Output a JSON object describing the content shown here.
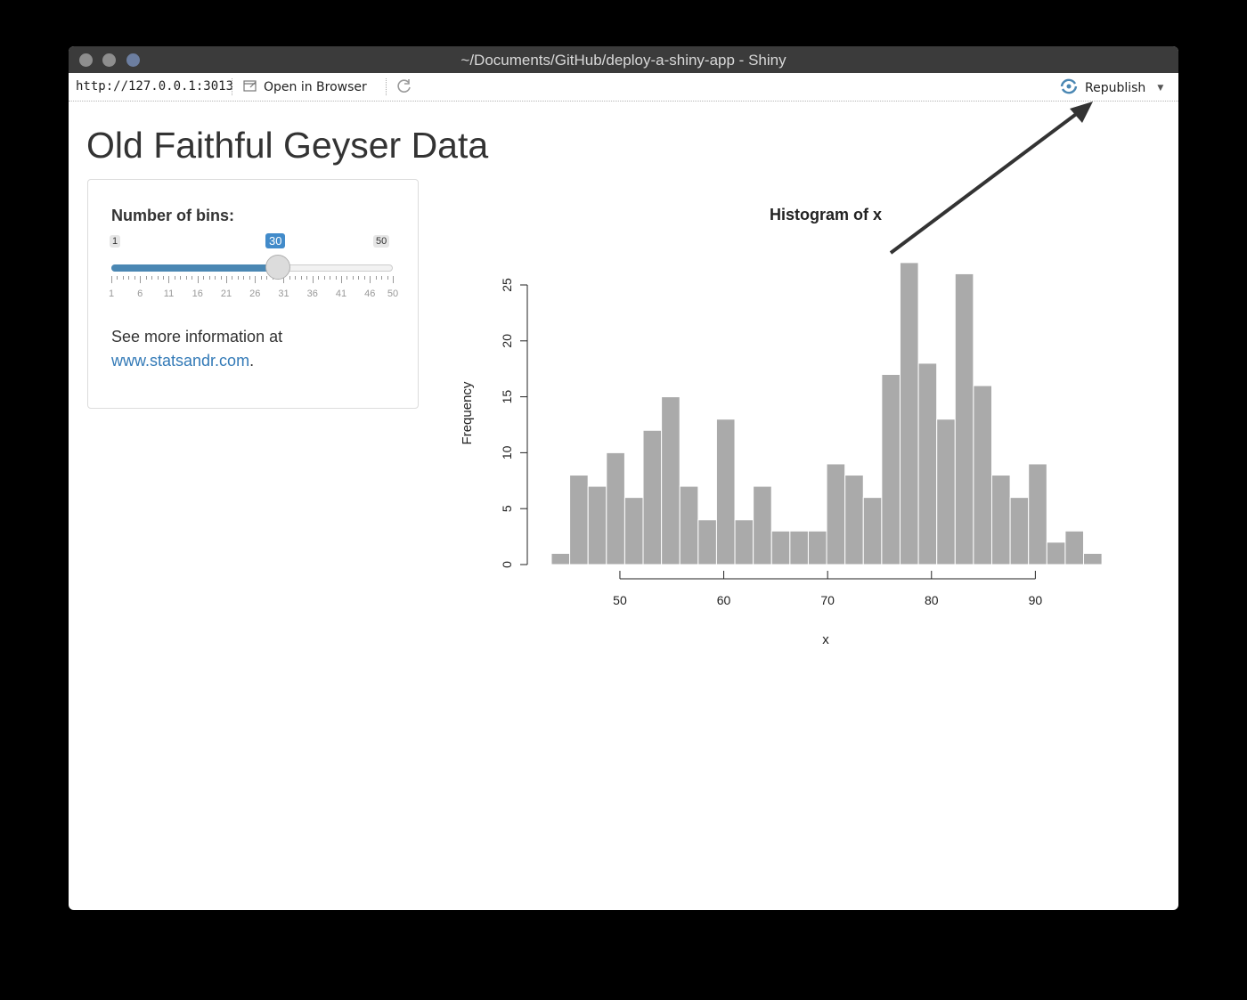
{
  "window": {
    "title": "~/Documents/GitHub/deploy-a-shiny-app - Shiny"
  },
  "toolbar": {
    "url": "http://127.0.0.1:3013",
    "open_in_browser": "Open in Browser",
    "republish": "Republish"
  },
  "app": {
    "title": "Old Faithful Geyser Data",
    "bins_label": "Number of bins:",
    "slider": {
      "min": 1,
      "max": 50,
      "value": 30,
      "min_label": "1",
      "max_label": "50",
      "value_label": "30",
      "tick_labels": [
        "1",
        "6",
        "11",
        "16",
        "21",
        "26",
        "31",
        "36",
        "41",
        "46",
        "50"
      ]
    },
    "more_info_text": "See more information at",
    "more_info_link": "www.statsandr.com",
    "more_info_period": "."
  },
  "colors": {
    "accent": "#428bca",
    "bar_fill": "#aaaaaa",
    "link": "#337ab7"
  },
  "chart_data": {
    "type": "bar",
    "title": "Histogram of x",
    "xlabel": "x",
    "ylabel": "Frequency",
    "bin_start": 43.4,
    "bin_width": 1.767,
    "values": [
      1,
      8,
      7,
      10,
      6,
      12,
      15,
      7,
      4,
      13,
      4,
      7,
      3,
      3,
      3,
      9,
      8,
      6,
      17,
      27,
      18,
      13,
      26,
      16,
      8,
      6,
      9,
      2,
      3,
      1
    ],
    "x_ticks": [
      50,
      60,
      70,
      80,
      90
    ],
    "y_ticks": [
      0,
      5,
      10,
      15,
      20,
      25
    ],
    "xlim": [
      43.4,
      96.4
    ],
    "ylim": [
      0,
      27
    ],
    "grid": false
  }
}
